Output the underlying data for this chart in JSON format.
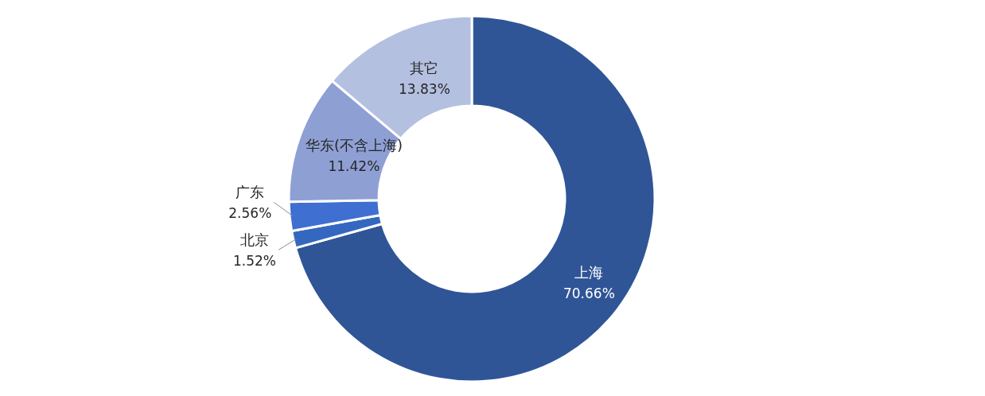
{
  "chart_data": {
    "type": "donut",
    "categories": [
      "上海",
      "北京",
      "广东",
      "华东(不含上海)",
      "其它"
    ],
    "values": [
      70.66,
      1.52,
      2.56,
      11.42,
      13.83
    ],
    "value_labels": [
      "70.66%",
      "1.52%",
      "2.56%",
      "11.42%",
      "13.83%"
    ],
    "colors": [
      "#2f5597",
      "#3468c0",
      "#3f6fd0",
      "#8e9fd4",
      "#b4c0e0"
    ]
  }
}
